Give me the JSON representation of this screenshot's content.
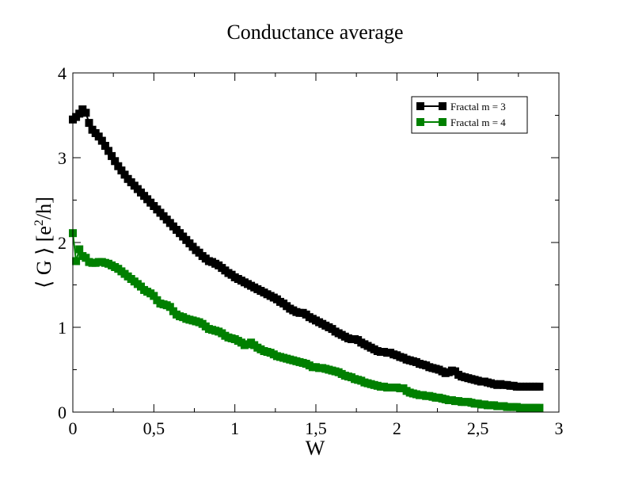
{
  "chart_data": {
    "type": "line",
    "title": "Conductance average",
    "xlabel": "W",
    "ylabel": {
      "prefix": "⟨ G ⟩ [e",
      "sup": "2",
      "suffix": "/h]"
    },
    "xlim": [
      0,
      3
    ],
    "ylim": [
      0,
      4
    ],
    "xticks": [
      {
        "value": 0,
        "label": "0"
      },
      {
        "value": 0.5,
        "label": "0,5"
      },
      {
        "value": 1,
        "label": "1"
      },
      {
        "value": 1.5,
        "label": "1,5"
      },
      {
        "value": 2,
        "label": "2"
      },
      {
        "value": 2.5,
        "label": "2,5"
      },
      {
        "value": 3,
        "label": "3"
      }
    ],
    "yticks": [
      {
        "value": 0,
        "label": "0"
      },
      {
        "value": 1,
        "label": "1"
      },
      {
        "value": 2,
        "label": "2"
      },
      {
        "value": 3,
        "label": "3"
      },
      {
        "value": 4,
        "label": "4"
      }
    ],
    "grid": false,
    "legend_position": "top-right",
    "marker": "square",
    "series": [
      {
        "name": "Fractal m = 3",
        "color": "#000000",
        "points": [
          [
            0.0,
            3.45
          ],
          [
            0.02,
            3.48
          ],
          [
            0.04,
            3.52
          ],
          [
            0.06,
            3.57
          ],
          [
            0.08,
            3.53
          ],
          [
            0.1,
            3.41
          ],
          [
            0.12,
            3.33
          ],
          [
            0.14,
            3.29
          ],
          [
            0.16,
            3.25
          ],
          [
            0.18,
            3.2
          ],
          [
            0.2,
            3.14
          ],
          [
            0.22,
            3.08
          ],
          [
            0.24,
            3.02
          ],
          [
            0.26,
            2.96
          ],
          [
            0.28,
            2.9
          ],
          [
            0.3,
            2.85
          ],
          [
            0.32,
            2.8
          ],
          [
            0.34,
            2.75
          ],
          [
            0.36,
            2.71
          ],
          [
            0.38,
            2.67
          ],
          [
            0.4,
            2.63
          ],
          [
            0.42,
            2.59
          ],
          [
            0.44,
            2.55
          ],
          [
            0.46,
            2.51
          ],
          [
            0.48,
            2.47
          ],
          [
            0.5,
            2.43
          ],
          [
            0.52,
            2.39
          ],
          [
            0.54,
            2.35
          ],
          [
            0.56,
            2.31
          ],
          [
            0.58,
            2.27
          ],
          [
            0.6,
            2.23
          ],
          [
            0.62,
            2.19
          ],
          [
            0.64,
            2.15
          ],
          [
            0.66,
            2.11
          ],
          [
            0.68,
            2.07
          ],
          [
            0.7,
            2.03
          ],
          [
            0.72,
            1.99
          ],
          [
            0.74,
            1.95
          ],
          [
            0.76,
            1.91
          ],
          [
            0.78,
            1.88
          ],
          [
            0.8,
            1.84
          ],
          [
            0.82,
            1.81
          ],
          [
            0.84,
            1.78
          ],
          [
            0.86,
            1.77
          ],
          [
            0.88,
            1.75
          ],
          [
            0.9,
            1.73
          ],
          [
            0.92,
            1.7
          ],
          [
            0.94,
            1.67
          ],
          [
            0.96,
            1.64
          ],
          [
            0.98,
            1.62
          ],
          [
            1.0,
            1.59
          ],
          [
            1.02,
            1.57
          ],
          [
            1.04,
            1.55
          ],
          [
            1.06,
            1.53
          ],
          [
            1.08,
            1.51
          ],
          [
            1.1,
            1.49
          ],
          [
            1.12,
            1.47
          ],
          [
            1.14,
            1.45
          ],
          [
            1.16,
            1.43
          ],
          [
            1.18,
            1.41
          ],
          [
            1.2,
            1.39
          ],
          [
            1.22,
            1.37
          ],
          [
            1.24,
            1.35
          ],
          [
            1.26,
            1.33
          ],
          [
            1.28,
            1.3
          ],
          [
            1.3,
            1.28
          ],
          [
            1.32,
            1.25
          ],
          [
            1.34,
            1.22
          ],
          [
            1.36,
            1.2
          ],
          [
            1.38,
            1.18
          ],
          [
            1.4,
            1.17
          ],
          [
            1.42,
            1.17
          ],
          [
            1.44,
            1.15
          ],
          [
            1.46,
            1.12
          ],
          [
            1.48,
            1.1
          ],
          [
            1.5,
            1.08
          ],
          [
            1.52,
            1.06
          ],
          [
            1.54,
            1.04
          ],
          [
            1.56,
            1.02
          ],
          [
            1.58,
            1.0
          ],
          [
            1.6,
            0.98
          ],
          [
            1.62,
            0.95
          ],
          [
            1.64,
            0.93
          ],
          [
            1.66,
            0.91
          ],
          [
            1.68,
            0.89
          ],
          [
            1.7,
            0.87
          ],
          [
            1.72,
            0.86
          ],
          [
            1.74,
            0.86
          ],
          [
            1.76,
            0.85
          ],
          [
            1.78,
            0.82
          ],
          [
            1.8,
            0.8
          ],
          [
            1.82,
            0.78
          ],
          [
            1.84,
            0.76
          ],
          [
            1.86,
            0.74
          ],
          [
            1.88,
            0.72
          ],
          [
            1.9,
            0.71
          ],
          [
            1.92,
            0.71
          ],
          [
            1.94,
            0.7
          ],
          [
            1.96,
            0.7
          ],
          [
            1.98,
            0.68
          ],
          [
            2.0,
            0.67
          ],
          [
            2.02,
            0.65
          ],
          [
            2.04,
            0.64
          ],
          [
            2.06,
            0.62
          ],
          [
            2.08,
            0.61
          ],
          [
            2.1,
            0.6
          ],
          [
            2.12,
            0.59
          ],
          [
            2.14,
            0.57
          ],
          [
            2.16,
            0.56
          ],
          [
            2.18,
            0.55
          ],
          [
            2.2,
            0.53
          ],
          [
            2.22,
            0.52
          ],
          [
            2.24,
            0.51
          ],
          [
            2.26,
            0.5
          ],
          [
            2.28,
            0.48
          ],
          [
            2.3,
            0.46
          ],
          [
            2.32,
            0.47
          ],
          [
            2.34,
            0.49
          ],
          [
            2.36,
            0.48
          ],
          [
            2.38,
            0.44
          ],
          [
            2.4,
            0.42
          ],
          [
            2.42,
            0.41
          ],
          [
            2.44,
            0.4
          ],
          [
            2.46,
            0.39
          ],
          [
            2.48,
            0.38
          ],
          [
            2.5,
            0.37
          ],
          [
            2.52,
            0.36
          ],
          [
            2.54,
            0.36
          ],
          [
            2.56,
            0.35
          ],
          [
            2.58,
            0.34
          ],
          [
            2.6,
            0.33
          ],
          [
            2.62,
            0.32
          ],
          [
            2.64,
            0.33
          ],
          [
            2.66,
            0.32
          ],
          [
            2.68,
            0.32
          ],
          [
            2.7,
            0.31
          ],
          [
            2.72,
            0.31
          ],
          [
            2.74,
            0.3
          ],
          [
            2.76,
            0.3
          ],
          [
            2.78,
            0.3
          ],
          [
            2.8,
            0.3
          ],
          [
            2.82,
            0.3
          ],
          [
            2.84,
            0.3
          ],
          [
            2.86,
            0.3
          ],
          [
            2.88,
            0.3
          ]
        ]
      },
      {
        "name": "Fractal m = 4",
        "color": "#008000",
        "points": [
          [
            0.0,
            2.11
          ],
          [
            0.02,
            1.78
          ],
          [
            0.04,
            1.92
          ],
          [
            0.06,
            1.84
          ],
          [
            0.08,
            1.82
          ],
          [
            0.1,
            1.77
          ],
          [
            0.12,
            1.76
          ],
          [
            0.14,
            1.76
          ],
          [
            0.16,
            1.77
          ],
          [
            0.18,
            1.77
          ],
          [
            0.2,
            1.76
          ],
          [
            0.22,
            1.75
          ],
          [
            0.24,
            1.73
          ],
          [
            0.26,
            1.71
          ],
          [
            0.28,
            1.69
          ],
          [
            0.3,
            1.66
          ],
          [
            0.32,
            1.63
          ],
          [
            0.34,
            1.6
          ],
          [
            0.36,
            1.57
          ],
          [
            0.38,
            1.54
          ],
          [
            0.4,
            1.51
          ],
          [
            0.42,
            1.48
          ],
          [
            0.44,
            1.44
          ],
          [
            0.46,
            1.42
          ],
          [
            0.48,
            1.4
          ],
          [
            0.5,
            1.37
          ],
          [
            0.52,
            1.32
          ],
          [
            0.54,
            1.28
          ],
          [
            0.56,
            1.27
          ],
          [
            0.58,
            1.26
          ],
          [
            0.6,
            1.24
          ],
          [
            0.62,
            1.19
          ],
          [
            0.64,
            1.15
          ],
          [
            0.66,
            1.13
          ],
          [
            0.68,
            1.12
          ],
          [
            0.7,
            1.1
          ],
          [
            0.72,
            1.09
          ],
          [
            0.74,
            1.08
          ],
          [
            0.76,
            1.07
          ],
          [
            0.78,
            1.06
          ],
          [
            0.8,
            1.04
          ],
          [
            0.82,
            1.01
          ],
          [
            0.84,
            0.98
          ],
          [
            0.86,
            0.97
          ],
          [
            0.88,
            0.96
          ],
          [
            0.9,
            0.95
          ],
          [
            0.92,
            0.93
          ],
          [
            0.94,
            0.9
          ],
          [
            0.96,
            0.88
          ],
          [
            0.98,
            0.87
          ],
          [
            1.0,
            0.86
          ],
          [
            1.02,
            0.84
          ],
          [
            1.04,
            0.82
          ],
          [
            1.06,
            0.79
          ],
          [
            1.08,
            0.8
          ],
          [
            1.1,
            0.82
          ],
          [
            1.12,
            0.79
          ],
          [
            1.14,
            0.76
          ],
          [
            1.16,
            0.74
          ],
          [
            1.18,
            0.72
          ],
          [
            1.2,
            0.71
          ],
          [
            1.22,
            0.7
          ],
          [
            1.24,
            0.68
          ],
          [
            1.26,
            0.66
          ],
          [
            1.28,
            0.65
          ],
          [
            1.3,
            0.64
          ],
          [
            1.32,
            0.63
          ],
          [
            1.34,
            0.62
          ],
          [
            1.36,
            0.61
          ],
          [
            1.38,
            0.6
          ],
          [
            1.4,
            0.59
          ],
          [
            1.42,
            0.58
          ],
          [
            1.44,
            0.57
          ],
          [
            1.46,
            0.55
          ],
          [
            1.48,
            0.53
          ],
          [
            1.5,
            0.53
          ],
          [
            1.52,
            0.52
          ],
          [
            1.54,
            0.52
          ],
          [
            1.56,
            0.51
          ],
          [
            1.58,
            0.5
          ],
          [
            1.6,
            0.49
          ],
          [
            1.62,
            0.48
          ],
          [
            1.64,
            0.47
          ],
          [
            1.66,
            0.45
          ],
          [
            1.68,
            0.43
          ],
          [
            1.7,
            0.42
          ],
          [
            1.72,
            0.41
          ],
          [
            1.74,
            0.39
          ],
          [
            1.76,
            0.38
          ],
          [
            1.78,
            0.37
          ],
          [
            1.8,
            0.35
          ],
          [
            1.82,
            0.34
          ],
          [
            1.84,
            0.33
          ],
          [
            1.86,
            0.32
          ],
          [
            1.88,
            0.31
          ],
          [
            1.9,
            0.3
          ],
          [
            1.92,
            0.3
          ],
          [
            1.94,
            0.29
          ],
          [
            1.96,
            0.29
          ],
          [
            1.98,
            0.29
          ],
          [
            2.0,
            0.29
          ],
          [
            2.02,
            0.28
          ],
          [
            2.04,
            0.28
          ],
          [
            2.06,
            0.25
          ],
          [
            2.08,
            0.23
          ],
          [
            2.1,
            0.22
          ],
          [
            2.12,
            0.21
          ],
          [
            2.14,
            0.2
          ],
          [
            2.16,
            0.2
          ],
          [
            2.18,
            0.19
          ],
          [
            2.2,
            0.19
          ],
          [
            2.22,
            0.18
          ],
          [
            2.24,
            0.17
          ],
          [
            2.26,
            0.17
          ],
          [
            2.28,
            0.16
          ],
          [
            2.3,
            0.15
          ],
          [
            2.32,
            0.14
          ],
          [
            2.34,
            0.14
          ],
          [
            2.36,
            0.13
          ],
          [
            2.38,
            0.13
          ],
          [
            2.4,
            0.12
          ],
          [
            2.42,
            0.12
          ],
          [
            2.44,
            0.12
          ],
          [
            2.46,
            0.11
          ],
          [
            2.48,
            0.1
          ],
          [
            2.5,
            0.1
          ],
          [
            2.52,
            0.09
          ],
          [
            2.54,
            0.09
          ],
          [
            2.56,
            0.08
          ],
          [
            2.58,
            0.08
          ],
          [
            2.6,
            0.08
          ],
          [
            2.62,
            0.07
          ],
          [
            2.64,
            0.07
          ],
          [
            2.66,
            0.07
          ],
          [
            2.68,
            0.06
          ],
          [
            2.7,
            0.06
          ],
          [
            2.72,
            0.06
          ],
          [
            2.74,
            0.06
          ],
          [
            2.76,
            0.05
          ],
          [
            2.78,
            0.05
          ],
          [
            2.8,
            0.05
          ],
          [
            2.82,
            0.05
          ],
          [
            2.84,
            0.05
          ],
          [
            2.86,
            0.05
          ],
          [
            2.88,
            0.05
          ]
        ]
      }
    ]
  }
}
